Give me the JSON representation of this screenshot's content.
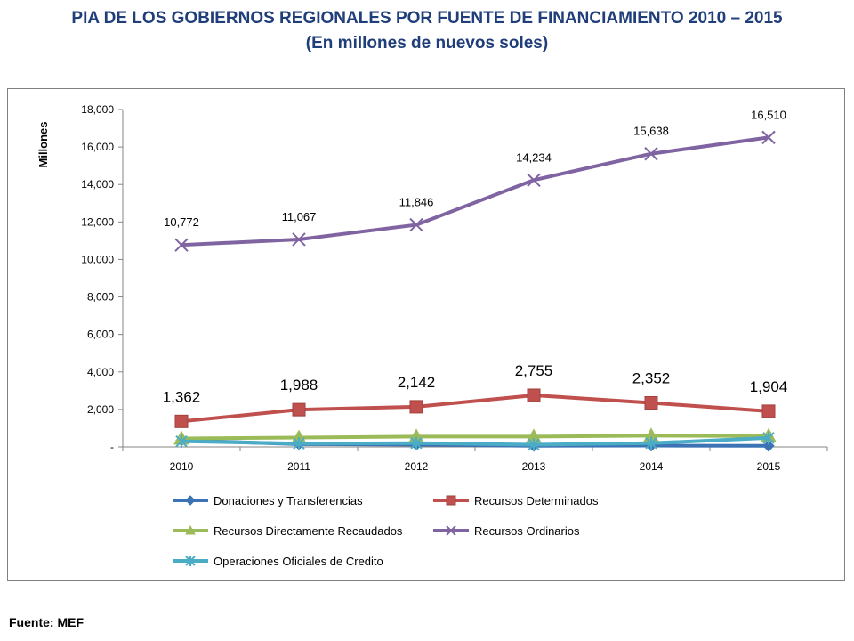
{
  "page": {
    "title_line1": "PIA DE LOS GOBIERNOS REGIONALES POR FUENTE DE FINANCIAMIENTO 2010 – 2015",
    "title_line2": "(En millones de nuevos soles)",
    "source": "Fuente: MEF"
  },
  "chart_data": {
    "type": "line",
    "title": "",
    "xlabel": "",
    "ylabel": "Millones",
    "ylim": [
      0,
      18000
    ],
    "yticks": [
      0,
      2000,
      4000,
      6000,
      8000,
      10000,
      12000,
      14000,
      16000,
      18000
    ],
    "ytick_labels": [
      "-",
      "2,000",
      "4,000",
      "6,000",
      "8,000",
      "10,000",
      "12,000",
      "14,000",
      "16,000",
      "18,000"
    ],
    "categories": [
      "2010",
      "2011",
      "2012",
      "2013",
      "2014",
      "2015"
    ],
    "grid": false,
    "legend_position": "bottom",
    "series": [
      {
        "name": "Donaciones y Transferencias",
        "color": "#3c73b4",
        "marker": "diamond",
        "values": [
          350,
          150,
          120,
          60,
          70,
          60
        ],
        "show_labels": false
      },
      {
        "name": "Recursos Determinados",
        "color": "#c0504d",
        "marker": "square",
        "values": [
          1362,
          1988,
          2142,
          2755,
          2352,
          1904
        ],
        "show_labels": true,
        "data_labels": [
          "1,362",
          "1,988",
          "2,142",
          "2,755",
          "2,352",
          "1,904"
        ]
      },
      {
        "name": "Recursos Directamente Recaudados",
        "color": "#9bbb59",
        "marker": "triangle",
        "values": [
          450,
          500,
          550,
          550,
          600,
          580
        ],
        "show_labels": false
      },
      {
        "name": "Recursos Ordinarios",
        "color": "#8064a2",
        "marker": "x",
        "values": [
          10772,
          11067,
          11846,
          14234,
          15638,
          16510
        ],
        "show_labels": true,
        "data_labels": [
          "10,772",
          "11,067",
          "11,846",
          "14,234",
          "15,638",
          "16,510"
        ]
      },
      {
        "name": "Operaciones Oficiales de Credito",
        "color": "#4bacc6",
        "marker": "star",
        "values": [
          300,
          180,
          200,
          120,
          200,
          480
        ],
        "show_labels": false
      }
    ]
  }
}
